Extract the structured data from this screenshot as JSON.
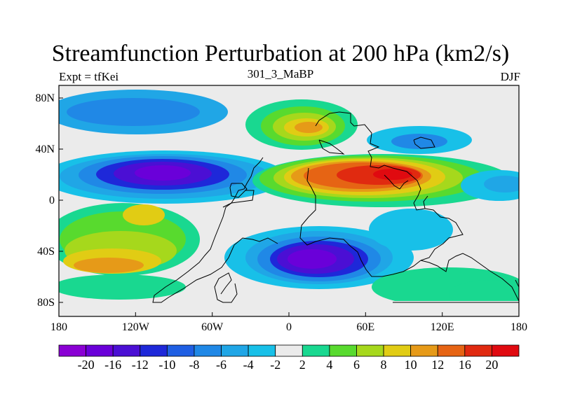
{
  "title": "Streamfunction Perturbation at 200 hPa (km2/s)",
  "left_label": "Expt = tfKei",
  "center_label": "301_3_MaBP",
  "right_label": "DJF",
  "x_ticks": [
    "180",
    "120W",
    "60W",
    "0",
    "60E",
    "120E",
    "180"
  ],
  "y_ticks": [
    "80N",
    "40N",
    "0",
    "40S",
    "80S"
  ],
  "colorbar": {
    "labels": [
      "-20",
      "-16",
      "-12",
      "-10",
      "-8",
      "-6",
      "-4",
      "-2",
      "2",
      "4",
      "6",
      "8",
      "10",
      "12",
      "16",
      "20"
    ],
    "colors": [
      "#8a00d4",
      "#6a00d9",
      "#4b0fd4",
      "#1e28d9",
      "#1f5fe3",
      "#2088e6",
      "#20a6e6",
      "#18c0e8",
      "#ebebeb",
      "#19d890",
      "#58da2e",
      "#a6d81c",
      "#e1cc14",
      "#e69a18",
      "#e66414",
      "#e02a10",
      "#e00a10"
    ]
  }
}
